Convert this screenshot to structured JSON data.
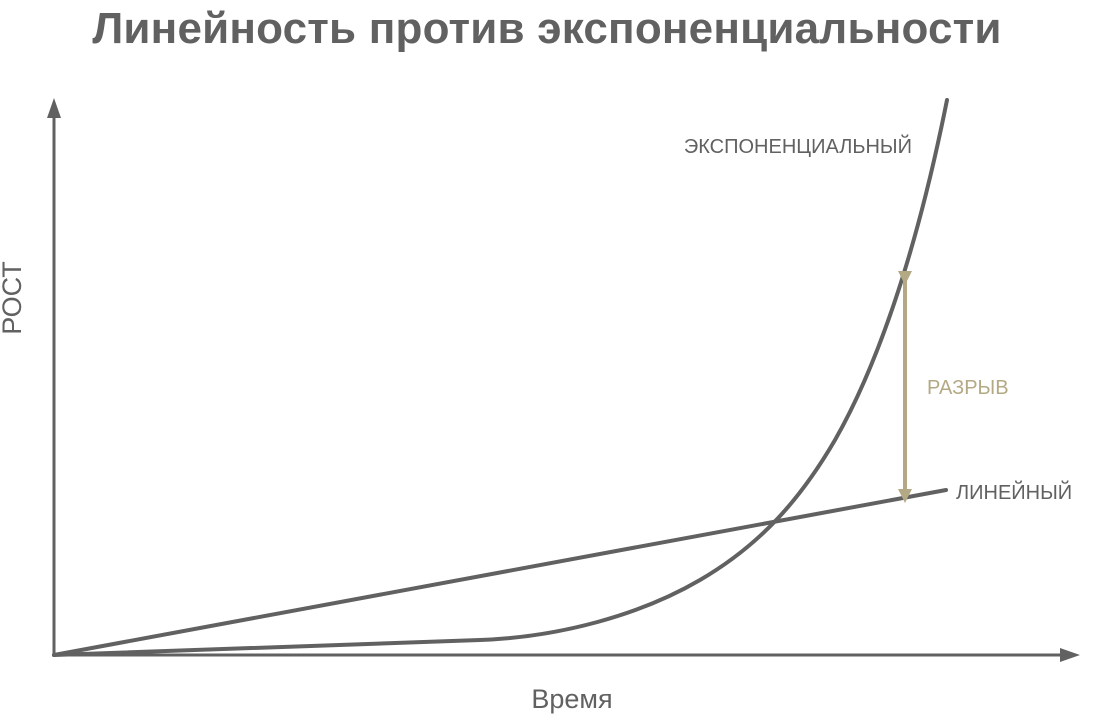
{
  "chart_data": {
    "type": "line",
    "title": "Линейность против экспоненциальности",
    "xlabel": "Время",
    "ylabel": "РОСТ",
    "grid": false,
    "legend": "inline labels at series ends",
    "series": [
      {
        "name": "ЭКСПОНЕНЦИАЛЬНЫЙ",
        "shape": "exponential"
      },
      {
        "name": "ЛИНЕЙНЫЙ",
        "shape": "linear"
      }
    ],
    "annotations": [
      {
        "text": "РАЗРЫВ",
        "type": "double-arrow",
        "between": [
          "ЭКСПОНЕНЦИАЛЬНЫЙ",
          "ЛИНЕЙНЫЙ"
        ]
      }
    ],
    "colors": {
      "series": "#616161",
      "axis": "#616161",
      "gap": "#b3a985"
    }
  }
}
